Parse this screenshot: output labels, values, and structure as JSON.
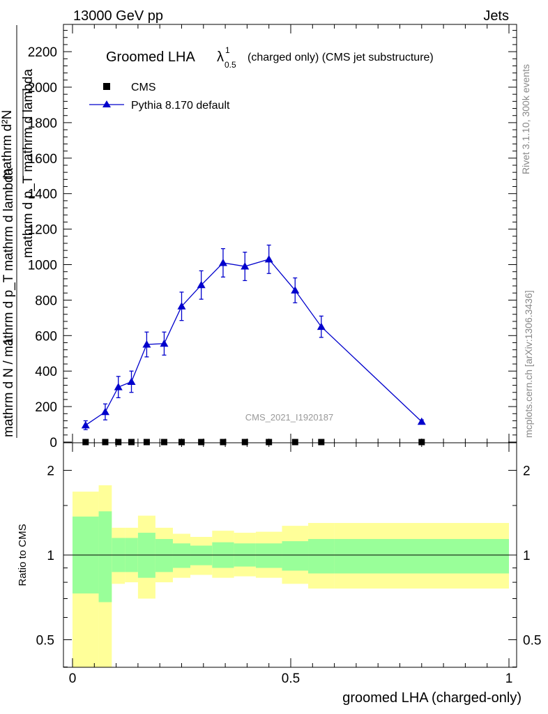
{
  "header": {
    "energy_label": "13000 GeV pp",
    "category_label": "Jets"
  },
  "right_labels": {
    "version": "Rivet 3.1.10,  300k events",
    "source": "mcplots.cern.ch [arXiv:1306.3436]"
  },
  "watermark": "CMS_2021_I1920187",
  "chart_data": [
    {
      "type": "line",
      "title": "Groomed LHA",
      "title_symbol": "λ",
      "title_sup": "1",
      "title_sub": "0.5",
      "title_suffix": "(charged only) (CMS jet substructure)",
      "ylabel": "1 / mathrm dN / mathrm d p_T mathrm d lambda ... mathrm d²N / mathrm d p_T mathrm d lambda",
      "ylabel_denominator": "mathrm d N / mathrm d p_T mathrm d lambda",
      "ylabel_one": "1",
      "ylabel_numerator_top": "mathrm d²N",
      "ylabel_numerator_bottom": "mathrm d p_T mathrm d lambda",
      "xlim": [
        0,
        1
      ],
      "ylim": [
        0,
        2350
      ],
      "yticks": [
        0,
        200,
        400,
        600,
        800,
        1000,
        1200,
        1400,
        1600,
        1800,
        2000,
        2200
      ],
      "ytick_labels": [
        "0",
        "200",
        "400",
        "600",
        "800",
        "1000",
        "1200",
        "1400",
        "1600",
        "1800",
        "2000",
        "2200"
      ],
      "legend_position": "top-left",
      "series": [
        {
          "name": "CMS",
          "marker": "square",
          "color": "#000000",
          "x": [
            0.03,
            0.075,
            0.105,
            0.135,
            0.17,
            0.21,
            0.25,
            0.295,
            0.345,
            0.395,
            0.45,
            0.51,
            0.57,
            0.8
          ],
          "y": [
            0,
            0,
            0,
            0,
            0,
            0,
            0,
            0,
            0,
            0,
            0,
            0,
            0,
            0
          ]
        },
        {
          "name": "Pythia 8.170 default",
          "marker": "triangle",
          "color": "#0000cc",
          "x": [
            0.03,
            0.075,
            0.105,
            0.135,
            0.17,
            0.21,
            0.25,
            0.295,
            0.345,
            0.395,
            0.45,
            0.51,
            0.57,
            0.8
          ],
          "y": [
            95,
            170,
            310,
            340,
            550,
            555,
            765,
            885,
            1010,
            990,
            1030,
            855,
            650,
            115
          ],
          "yerr": [
            25,
            45,
            60,
            60,
            70,
            65,
            80,
            80,
            80,
            80,
            80,
            70,
            60,
            10
          ]
        }
      ]
    },
    {
      "type": "area",
      "ylabel": "Ratio to CMS",
      "xlabel": "groomed LHA (charged-only)",
      "xlim": [
        0,
        1
      ],
      "ylim": [
        0.35,
        2.35
      ],
      "scale": "log",
      "yticks": [
        0.5,
        1,
        2
      ],
      "ytick_labels": [
        "0.5",
        "1",
        "2"
      ],
      "xticks": [
        0,
        0.5,
        1
      ],
      "xtick_labels": [
        "0",
        "0.5",
        "1"
      ],
      "reference_line": 1,
      "colors": {
        "inner_band": "#99ff99",
        "outer_band": "#ffff99"
      },
      "bins": [
        {
          "lo": 0.0,
          "hi": 0.06,
          "inner": [
            0.73,
            1.37
          ],
          "outer": [
            0.3,
            1.68
          ]
        },
        {
          "lo": 0.06,
          "hi": 0.09,
          "inner": [
            0.68,
            1.43
          ],
          "outer": [
            0.3,
            1.77
          ]
        },
        {
          "lo": 0.09,
          "hi": 0.12,
          "inner": [
            0.87,
            1.15
          ],
          "outer": [
            0.79,
            1.25
          ]
        },
        {
          "lo": 0.12,
          "hi": 0.15,
          "inner": [
            0.87,
            1.15
          ],
          "outer": [
            0.8,
            1.25
          ]
        },
        {
          "lo": 0.15,
          "hi": 0.19,
          "inner": [
            0.83,
            1.2
          ],
          "outer": [
            0.7,
            1.38
          ]
        },
        {
          "lo": 0.19,
          "hi": 0.23,
          "inner": [
            0.87,
            1.14
          ],
          "outer": [
            0.8,
            1.25
          ]
        },
        {
          "lo": 0.23,
          "hi": 0.27,
          "inner": [
            0.9,
            1.1
          ],
          "outer": [
            0.83,
            1.19
          ]
        },
        {
          "lo": 0.27,
          "hi": 0.32,
          "inner": [
            0.92,
            1.08
          ],
          "outer": [
            0.85,
            1.16
          ]
        },
        {
          "lo": 0.32,
          "hi": 0.37,
          "inner": [
            0.9,
            1.11
          ],
          "outer": [
            0.83,
            1.22
          ]
        },
        {
          "lo": 0.37,
          "hi": 0.42,
          "inner": [
            0.91,
            1.1
          ],
          "outer": [
            0.84,
            1.2
          ]
        },
        {
          "lo": 0.42,
          "hi": 0.48,
          "inner": [
            0.9,
            1.1
          ],
          "outer": [
            0.83,
            1.21
          ]
        },
        {
          "lo": 0.48,
          "hi": 0.54,
          "inner": [
            0.88,
            1.12
          ],
          "outer": [
            0.79,
            1.27
          ]
        },
        {
          "lo": 0.54,
          "hi": 0.6,
          "inner": [
            0.86,
            1.14
          ],
          "outer": [
            0.76,
            1.3
          ]
        },
        {
          "lo": 0.6,
          "hi": 1.0,
          "inner": [
            0.86,
            1.14
          ],
          "outer": [
            0.76,
            1.3
          ]
        }
      ]
    }
  ]
}
